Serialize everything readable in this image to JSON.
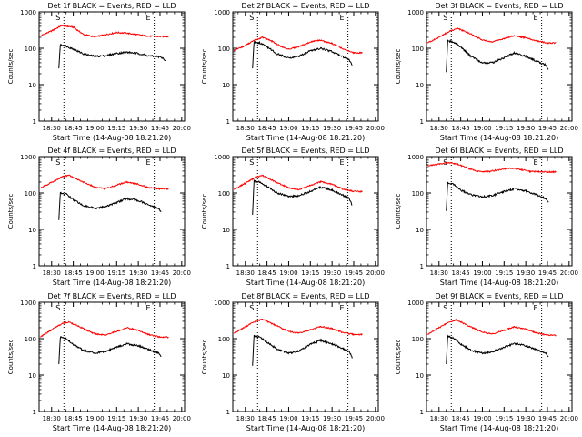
{
  "chart_data": [
    {
      "type": "line",
      "title": "Det 1f BLACK = Events, RED = LLD",
      "ylabel": "Counts/sec",
      "xlabel": "Start Time (14-Aug-08 18:21:20)",
      "xticks": [
        "18:30",
        "18:45",
        "19:00",
        "19:15",
        "19:30",
        "19:45",
        "20:00"
      ],
      "yticks": [
        "1",
        "10",
        "100",
        "1000"
      ],
      "ylim": [
        1,
        1000
      ],
      "yscale": "log",
      "markers": [
        "S",
        "E"
      ],
      "series": [
        {
          "color": "#ff0000",
          "x": [
            "18:22",
            "18:30",
            "18:37",
            "18:45",
            "18:52",
            "19:00",
            "19:07",
            "19:15",
            "19:22",
            "19:30",
            "19:37",
            "19:45",
            "19:51"
          ],
          "values": [
            215,
            300,
            420,
            380,
            240,
            205,
            235,
            270,
            260,
            235,
            215,
            210,
            210
          ]
        },
        {
          "color": "#000000",
          "x": [
            "18:35",
            "18:36",
            "18:39",
            "18:45",
            "18:52",
            "19:00",
            "19:07",
            "19:15",
            "19:22",
            "19:30",
            "19:37",
            "19:45",
            "19:48",
            "19:49"
          ],
          "values": [
            28,
            125,
            120,
            95,
            70,
            60,
            62,
            72,
            78,
            72,
            62,
            58,
            50,
            45
          ]
        }
      ]
    },
    {
      "type": "line",
      "title": "Det 2f BLACK = Events, RED = LLD",
      "ylabel": "Counts/sec",
      "xlabel": "Start Time (14-Aug-08 18:21:20)",
      "xticks": [
        "18:30",
        "18:45",
        "19:00",
        "19:15",
        "19:30",
        "19:45",
        "20:00"
      ],
      "yticks": [
        "1",
        "10",
        "100",
        "1000"
      ],
      "ylim": [
        1,
        1000
      ],
      "yscale": "log",
      "markers": [
        "S",
        "E"
      ],
      "series": [
        {
          "color": "#ff0000",
          "x": [
            "18:22",
            "18:30",
            "18:37",
            "18:42",
            "18:48",
            "18:55",
            "19:00",
            "19:07",
            "19:15",
            "19:22",
            "19:30",
            "19:37",
            "19:45",
            "19:51"
          ],
          "values": [
            85,
            120,
            170,
            200,
            160,
            110,
            95,
            110,
            150,
            165,
            135,
            100,
            75,
            75
          ]
        },
        {
          "color": "#000000",
          "x": [
            "18:35",
            "18:36",
            "18:40",
            "18:45",
            "18:52",
            "19:00",
            "19:07",
            "19:15",
            "19:22",
            "19:30",
            "19:37",
            "19:42",
            "19:44"
          ],
          "values": [
            28,
            150,
            140,
            110,
            70,
            55,
            60,
            85,
            100,
            80,
            60,
            48,
            32
          ]
        }
      ]
    },
    {
      "type": "line",
      "title": "Det 3f BLACK = Events, RED = LLD",
      "ylabel": "Counts/sec",
      "xlabel": "Start Time (14-Aug-08 18:21:20)",
      "xticks": [
        "18:30",
        "18:45",
        "19:00",
        "19:15",
        "19:30",
        "19:45",
        "20:00"
      ],
      "yticks": [
        "1",
        "10",
        "100",
        "1000"
      ],
      "ylim": [
        1,
        1000
      ],
      "yscale": "log",
      "markers": [
        "S",
        "E"
      ],
      "series": [
        {
          "color": "#ff0000",
          "x": [
            "18:22",
            "18:30",
            "18:37",
            "18:43",
            "18:50",
            "19:00",
            "19:07",
            "19:15",
            "19:22",
            "19:30",
            "19:37",
            "19:45",
            "19:51"
          ],
          "values": [
            140,
            200,
            290,
            350,
            270,
            170,
            150,
            185,
            220,
            195,
            160,
            140,
            140
          ]
        },
        {
          "color": "#000000",
          "x": [
            "18:35",
            "18:36",
            "18:40",
            "18:45",
            "18:52",
            "19:00",
            "19:07",
            "19:15",
            "19:22",
            "19:30",
            "19:37",
            "19:44",
            "19:46"
          ],
          "values": [
            22,
            160,
            150,
            110,
            60,
            40,
            40,
            55,
            75,
            60,
            45,
            35,
            25
          ]
        }
      ]
    },
    {
      "type": "line",
      "title": "Det 4f BLACK = Events, RED = LLD",
      "ylabel": "Counts/sec",
      "xlabel": "Start Time (14-Aug-08 18:21:20)",
      "xticks": [
        "18:30",
        "18:45",
        "19:00",
        "19:15",
        "19:30",
        "19:45",
        "20:00"
      ],
      "yticks": [
        "1",
        "10",
        "100",
        "1000"
      ],
      "ylim": [
        1,
        1000
      ],
      "yscale": "log",
      "markers": [
        "S",
        "E"
      ],
      "series": [
        {
          "color": "#ff0000",
          "x": [
            "18:22",
            "18:30",
            "18:37",
            "18:42",
            "18:50",
            "19:00",
            "19:07",
            "19:15",
            "19:22",
            "19:30",
            "19:37",
            "19:45",
            "19:51"
          ],
          "values": [
            135,
            195,
            275,
            310,
            215,
            145,
            130,
            165,
            200,
            175,
            140,
            130,
            130
          ]
        },
        {
          "color": "#000000",
          "x": [
            "18:35",
            "18:36",
            "18:40",
            "18:45",
            "18:52",
            "19:00",
            "19:07",
            "19:15",
            "19:22",
            "19:30",
            "19:37",
            "19:44",
            "19:46"
          ],
          "values": [
            18,
            100,
            95,
            65,
            45,
            38,
            42,
            55,
            70,
            62,
            48,
            38,
            28
          ]
        }
      ]
    },
    {
      "type": "line",
      "title": "Det 5f BLACK = Events, RED = LLD",
      "ylabel": "Counts/sec",
      "xlabel": "Start Time (14-Aug-08 18:21:20)",
      "xticks": [
        "18:30",
        "18:45",
        "19:00",
        "19:15",
        "19:30",
        "19:45",
        "20:00"
      ],
      "yticks": [
        "1",
        "10",
        "100",
        "1000"
      ],
      "ylim": [
        1,
        1000
      ],
      "yscale": "log",
      "markers": [
        "S",
        "E"
      ],
      "series": [
        {
          "color": "#ff0000",
          "x": [
            "18:22",
            "18:30",
            "18:37",
            "18:42",
            "18:50",
            "19:00",
            "19:07",
            "19:15",
            "19:22",
            "19:30",
            "19:37",
            "19:45",
            "19:51"
          ],
          "values": [
            125,
            185,
            270,
            300,
            210,
            140,
            125,
            160,
            205,
            175,
            130,
            110,
            110
          ]
        },
        {
          "color": "#000000",
          "x": [
            "18:35",
            "18:36",
            "18:40",
            "18:45",
            "18:52",
            "19:00",
            "19:07",
            "19:15",
            "19:22",
            "19:30",
            "19:37",
            "19:42",
            "19:44"
          ],
          "values": [
            25,
            210,
            200,
            150,
            100,
            80,
            85,
            110,
            145,
            120,
            90,
            70,
            45
          ]
        }
      ]
    },
    {
      "type": "line",
      "title": "Det 6f BLACK = Events, RED = LLD",
      "ylabel": "Counts/sec",
      "xlabel": "Start Time (14-Aug-08 18:21:20)",
      "xticks": [
        "18:30",
        "18:45",
        "19:00",
        "19:15",
        "19:30",
        "19:45",
        "20:00"
      ],
      "yticks": [
        "1",
        "10",
        "100",
        "1000"
      ],
      "ylim": [
        1,
        1000
      ],
      "yscale": "log",
      "markers": [
        "S",
        "E"
      ],
      "series": [
        {
          "color": "#ff0000",
          "x": [
            "18:22",
            "18:30",
            "18:37",
            "18:43",
            "18:50",
            "18:57",
            "19:05",
            "19:12",
            "19:19",
            "19:26",
            "19:33",
            "19:45",
            "19:51"
          ],
          "values": [
            560,
            620,
            680,
            610,
            480,
            390,
            390,
            440,
            480,
            450,
            390,
            380,
            380
          ]
        },
        {
          "color": "#000000",
          "x": [
            "18:35",
            "18:36",
            "18:40",
            "18:45",
            "18:52",
            "19:00",
            "19:07",
            "19:15",
            "19:22",
            "19:30",
            "19:37",
            "19:44",
            "19:46"
          ],
          "values": [
            32,
            190,
            175,
            120,
            90,
            78,
            85,
            110,
            130,
            115,
            90,
            70,
            55
          ]
        }
      ]
    },
    {
      "type": "line",
      "title": "Det 7f BLACK = Events, RED = LLD",
      "ylabel": "Counts/sec",
      "xlabel": "Start Time (14-Aug-08 18:21:20)",
      "xticks": [
        "18:30",
        "18:45",
        "19:00",
        "19:15",
        "19:30",
        "19:45",
        "20:00"
      ],
      "yticks": [
        "1",
        "10",
        "100",
        "1000"
      ],
      "ylim": [
        1,
        1000
      ],
      "yscale": "log",
      "markers": [
        "S",
        "E"
      ],
      "series": [
        {
          "color": "#ff0000",
          "x": [
            "18:22",
            "18:30",
            "18:37",
            "18:42",
            "18:50",
            "19:00",
            "19:07",
            "19:15",
            "19:22",
            "19:30",
            "19:37",
            "19:45",
            "19:51"
          ],
          "values": [
            110,
            175,
            255,
            290,
            205,
            135,
            125,
            160,
            200,
            170,
            130,
            110,
            110
          ]
        },
        {
          "color": "#000000",
          "x": [
            "18:35",
            "18:36",
            "18:40",
            "18:45",
            "18:52",
            "19:00",
            "19:07",
            "19:15",
            "19:22",
            "19:30",
            "19:37",
            "19:44",
            "19:46"
          ],
          "values": [
            20,
            110,
            100,
            70,
            48,
            40,
            44,
            58,
            72,
            64,
            50,
            40,
            30
          ]
        }
      ]
    },
    {
      "type": "line",
      "title": "Det 8f BLACK = Events, RED = LLD",
      "ylabel": "Counts/sec",
      "xlabel": "Start Time (14-Aug-08 18:21:20)",
      "xticks": [
        "18:30",
        "18:45",
        "19:00",
        "19:15",
        "19:30",
        "19:45",
        "20:00"
      ],
      "yticks": [
        "1",
        "10",
        "100",
        "1000"
      ],
      "ylim": [
        1,
        1000
      ],
      "yscale": "log",
      "markers": [
        "S",
        "E"
      ],
      "series": [
        {
          "color": "#ff0000",
          "x": [
            "18:22",
            "18:30",
            "18:37",
            "18:42",
            "18:50",
            "19:00",
            "19:07",
            "19:15",
            "19:22",
            "19:30",
            "19:37",
            "19:45",
            "19:51"
          ],
          "values": [
            140,
            210,
            300,
            340,
            240,
            160,
            140,
            175,
            215,
            190,
            150,
            130,
            130
          ]
        },
        {
          "color": "#000000",
          "x": [
            "18:35",
            "18:36",
            "18:40",
            "18:45",
            "18:52",
            "19:00",
            "19:07",
            "19:15",
            "19:22",
            "19:30",
            "19:37",
            "19:42",
            "19:44"
          ],
          "values": [
            18,
            120,
            110,
            80,
            52,
            40,
            45,
            70,
            90,
            72,
            55,
            45,
            30
          ]
        }
      ]
    },
    {
      "type": "line",
      "title": "Det 9f BLACK = Events, RED = LLD",
      "ylabel": "Counts/sec",
      "xlabel": "Start Time (14-Aug-08 18:21:20)",
      "xticks": [
        "18:30",
        "18:45",
        "19:00",
        "19:15",
        "19:30",
        "19:45",
        "20:00"
      ],
      "yticks": [
        "1",
        "10",
        "100",
        "1000"
      ],
      "ylim": [
        1,
        1000
      ],
      "yscale": "log",
      "markers": [
        "S",
        "E"
      ],
      "series": [
        {
          "color": "#ff0000",
          "x": [
            "18:22",
            "18:30",
            "18:37",
            "18:42",
            "18:50",
            "19:00",
            "19:07",
            "19:15",
            "19:22",
            "19:30",
            "19:37",
            "19:45",
            "19:51"
          ],
          "values": [
            130,
            200,
            290,
            330,
            230,
            150,
            135,
            170,
            210,
            185,
            145,
            125,
            125
          ]
        },
        {
          "color": "#000000",
          "x": [
            "18:35",
            "18:36",
            "18:40",
            "18:45",
            "18:52",
            "19:00",
            "19:07",
            "19:15",
            "19:22",
            "19:30",
            "19:37",
            "19:44",
            "19:46"
          ],
          "values": [
            20,
            115,
            105,
            72,
            48,
            40,
            44,
            58,
            74,
            64,
            50,
            40,
            30
          ]
        }
      ]
    }
  ]
}
